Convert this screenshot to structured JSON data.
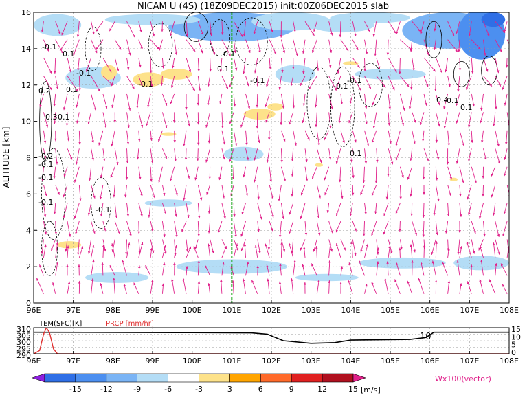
{
  "chart_data": [
    {
      "type": "heatmap",
      "title": "NICAM U (4S) (18Z09DEC2015) init:00Z06DEC2015 slab",
      "ylabel": "ALTITUDE [km]",
      "xlim": [
        96,
        108
      ],
      "ylim": [
        0,
        16
      ],
      "xticks": [
        "96E",
        "97E",
        "98E",
        "99E",
        "100E",
        "101E",
        "102E",
        "103E",
        "104E",
        "105E",
        "106E",
        "107E",
        "108E"
      ],
      "yticks": [
        "0",
        "2",
        "4",
        "6",
        "8",
        "10",
        "12",
        "14",
        "16"
      ],
      "contour_labels": [
        "-0.1",
        "0.1",
        "0.1",
        "-0.1",
        "0.2",
        "0.1",
        "-0.1",
        "-0.1",
        "-0.1",
        "-0.1",
        "0.4",
        "0.3",
        "0.1",
        "-0.2",
        "-0.1",
        "-0.1",
        "-0.1",
        "-0.1",
        "0.1",
        "-0.1",
        "0.1",
        "0.1"
      ],
      "marker_line_x": 101.0,
      "grid": true
    },
    {
      "type": "line",
      "series": [
        {
          "name": "TEM(SFC)[K]",
          "color": "#000000"
        },
        {
          "name": "PRCP [mm/hr]",
          "color": "#e03030"
        }
      ],
      "left_ticks": [
        "310",
        "305",
        "300",
        "295",
        "290"
      ],
      "right_ticks": [
        "15",
        "10",
        "5",
        "0"
      ],
      "xticks": [
        "96E",
        "97E",
        "98E",
        "99E",
        "100E",
        "101E",
        "102E",
        "103E",
        "104E",
        "105E",
        "106E",
        "107E",
        "108E"
      ],
      "annotation": "10",
      "xlim": [
        96,
        108
      ],
      "tem_points": [
        [
          96,
          306.5
        ],
        [
          100,
          306.2
        ],
        [
          101.5,
          306
        ],
        [
          101.9,
          305
        ],
        [
          102.3,
          300
        ],
        [
          103,
          298
        ],
        [
          103.6,
          298.5
        ],
        [
          104,
          300.5
        ],
        [
          105.5,
          301
        ],
        [
          105.9,
          302.5
        ],
        [
          106.1,
          306.5
        ],
        [
          108,
          306.5
        ]
      ],
      "prcp_points": [
        [
          96,
          0
        ],
        [
          96.15,
          2
        ],
        [
          96.25,
          12
        ],
        [
          96.32,
          16
        ],
        [
          96.4,
          13
        ],
        [
          96.5,
          3
        ],
        [
          96.6,
          0
        ],
        [
          108,
          0
        ]
      ]
    }
  ],
  "colorbar": {
    "ticks": [
      "-15",
      "-12",
      "-9",
      "-6",
      "-3",
      "3",
      "6",
      "9",
      "12",
      "15"
    ],
    "unit": "[m/s]",
    "colors": [
      "#8e1fe0",
      "#2f6fe6",
      "#4c8ff0",
      "#7ab4f5",
      "#b4ddf6",
      "#ffffff",
      "#fde28a",
      "#ffa500",
      "#ff6a2a",
      "#e02020",
      "#b0101f",
      "#e0208a"
    ]
  },
  "vector_label": "Wx100(vector)",
  "colors": {
    "vector": "#e0208a",
    "prcp": "#e03030",
    "marker": "#22aa22"
  }
}
